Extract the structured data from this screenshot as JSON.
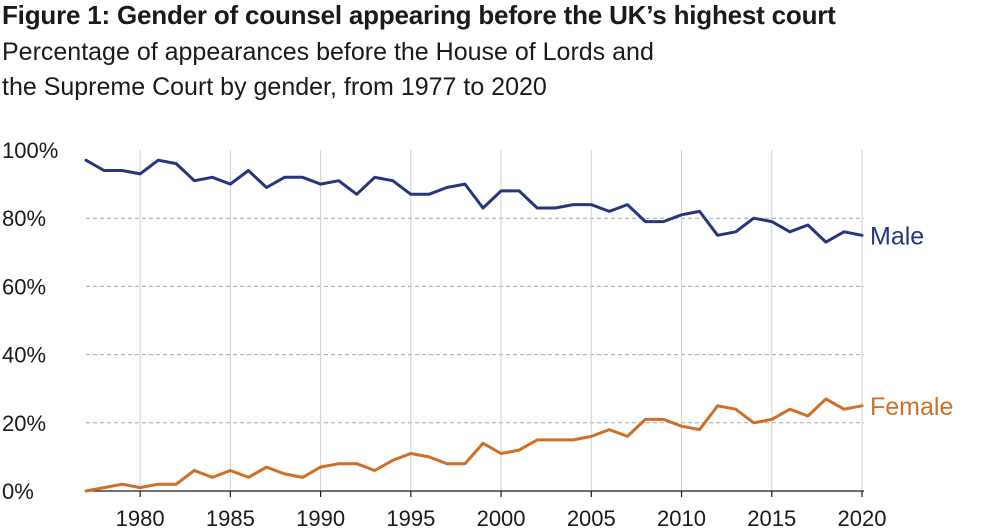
{
  "header": {
    "title": "Figure 1: Gender of counsel appearing before the UK’s highest court",
    "subtitle_line1": "Percentage of appearances before the House of Lords and",
    "subtitle_line2": "the Supreme Court by gender, from 1977 to 2020"
  },
  "chart_data": {
    "type": "line",
    "title": "Figure 1: Gender of counsel appearing before the UK’s highest court",
    "subtitle": "Percentage of appearances before the House of Lords and the Supreme Court by gender, from 1977 to 2020",
    "xlabel": "",
    "ylabel": "",
    "xlim": [
      1977,
      2020
    ],
    "ylim": [
      0,
      100
    ],
    "grid": true,
    "legend": "direct labels at right end of lines",
    "x_ticks": [
      1980,
      1985,
      1990,
      1995,
      2000,
      2005,
      2010,
      2015,
      2020
    ],
    "y_ticks": [
      0,
      20,
      40,
      60,
      80,
      100
    ],
    "y_tick_labels": [
      "0%",
      "20%",
      "40%",
      "60%",
      "80%",
      "100%"
    ],
    "x": [
      1977,
      1978,
      1979,
      1980,
      1981,
      1982,
      1983,
      1984,
      1985,
      1986,
      1987,
      1988,
      1989,
      1990,
      1991,
      1992,
      1993,
      1994,
      1995,
      1996,
      1997,
      1998,
      1999,
      2000,
      2001,
      2002,
      2003,
      2004,
      2005,
      2006,
      2007,
      2008,
      2009,
      2010,
      2011,
      2012,
      2013,
      2014,
      2015,
      2016,
      2017,
      2018,
      2019,
      2020
    ],
    "series": [
      {
        "name": "Male",
        "color": "#27357e",
        "values": [
          97,
          94,
          94,
          93,
          97,
          96,
          91,
          92,
          90,
          94,
          89,
          92,
          92,
          90,
          91,
          87,
          92,
          91,
          87,
          87,
          89,
          90,
          83,
          88,
          88,
          83,
          83,
          84,
          84,
          82,
          84,
          79,
          79,
          81,
          82,
          75,
          76,
          80,
          79,
          76,
          78,
          73,
          76,
          75
        ]
      },
      {
        "name": "Female",
        "color": "#cf6f27",
        "values": [
          0,
          1,
          2,
          1,
          2,
          2,
          6,
          4,
          6,
          4,
          7,
          5,
          4,
          7,
          8,
          8,
          6,
          9,
          11,
          10,
          8,
          8,
          14,
          11,
          12,
          15,
          15,
          15,
          16,
          18,
          16,
          21,
          21,
          19,
          18,
          25,
          24,
          20,
          21,
          24,
          22,
          27,
          24,
          25
        ]
      }
    ]
  }
}
